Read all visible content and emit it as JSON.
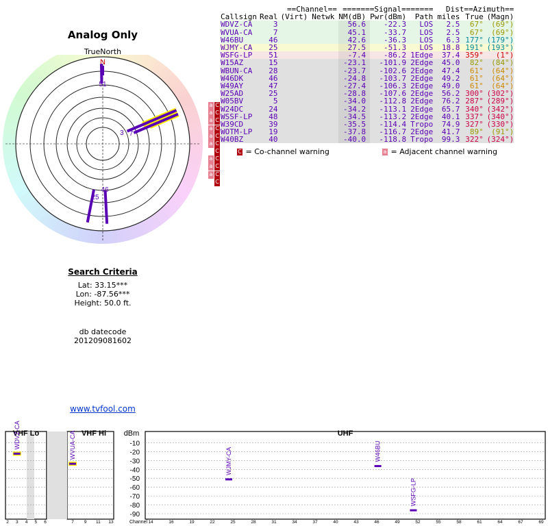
{
  "page": {
    "title": "Analog Only",
    "truenorth_label": "TrueNorth",
    "north_marker": "N",
    "link": "www.tvfool.com"
  },
  "search": {
    "heading": "Search Criteria",
    "lat": "Lat: 33.15***",
    "lon": "Lon: -87.56***",
    "height": "Height: 50.0 ft.",
    "datecode_label": "db datecode",
    "datecode": "201209081602"
  },
  "table": {
    "group_headers": {
      "channel": "==Channel==",
      "signal": "=======Signal=======",
      "dist": "Dist",
      "azimuth": "==Azimuth=="
    },
    "columns": [
      "Callsign",
      "Real",
      "(Virt)",
      "Netwk",
      "NM(dB)",
      "Pwr(dBm)",
      "Path",
      "miles",
      "True",
      "(Magn)"
    ],
    "rows": [
      {
        "callsign": "WDVZ-CA",
        "real": "3",
        "virt": "",
        "netwk": "",
        "nm": "56.6",
        "pwr": "-22.3",
        "path": "LOS",
        "dist": "2.5",
        "true": "67°",
        "magn": "(69°)",
        "bg": "#e6f6e6",
        "az_color": "#999900",
        "flag": ""
      },
      {
        "callsign": "WVUA-CA",
        "real": "7",
        "virt": "",
        "netwk": "",
        "nm": "45.1",
        "pwr": "-33.7",
        "path": "LOS",
        "dist": "2.5",
        "true": "67°",
        "magn": "(69°)",
        "bg": "#e6f6e6",
        "az_color": "#999900",
        "flag": ""
      },
      {
        "callsign": "W46BU",
        "real": "46",
        "virt": "",
        "netwk": "",
        "nm": "42.6",
        "pwr": "-36.3",
        "path": "LOS",
        "dist": "6.3",
        "true": "177°",
        "magn": "(179°)",
        "bg": "#e6f6e6",
        "az_color": "#008899",
        "flag": ""
      },
      {
        "callsign": "WJMY-CA",
        "real": "25",
        "virt": "",
        "netwk": "",
        "nm": "27.5",
        "pwr": "-51.3",
        "path": "LOS",
        "dist": "18.8",
        "true": "191°",
        "magn": "(193°)",
        "bg": "#fafad2",
        "az_color": "#008899",
        "flag": ""
      },
      {
        "callsign": "WSFG-LP",
        "real": "51",
        "virt": "",
        "netwk": "",
        "nm": "-7.4",
        "pwr": "-86.2",
        "path": "1Edge",
        "dist": "37.4",
        "true": "359°",
        "magn": "(1°)",
        "bg": "#f6e6e6",
        "az_color": "#cc0000",
        "flag": ""
      },
      {
        "callsign": "W15AZ",
        "real": "15",
        "virt": "",
        "netwk": "",
        "nm": "-23.1",
        "pwr": "-101.9",
        "path": "2Edge",
        "dist": "45.0",
        "true": "82°",
        "magn": "(84°)",
        "bg": "#e0e0e0",
        "az_color": "#999900",
        "flag": "aC"
      },
      {
        "callsign": "WBUN-CA",
        "real": "28",
        "virt": "",
        "netwk": "",
        "nm": "-23.7",
        "pwr": "-102.6",
        "path": "2Edge",
        "dist": "47.4",
        "true": "61°",
        "magn": "(64°)",
        "bg": "#e0e0e0",
        "az_color": "#cc8800",
        "flag": "aC"
      },
      {
        "callsign": "W46DK",
        "real": "46",
        "virt": "",
        "netwk": "",
        "nm": "-24.8",
        "pwr": "-103.7",
        "path": "2Edge",
        "dist": "49.2",
        "true": "61°",
        "magn": "(64°)",
        "bg": "#e0e0e0",
        "az_color": "#cc8800",
        "flag": "aC"
      },
      {
        "callsign": "W49AY",
        "real": "47",
        "virt": "",
        "netwk": "",
        "nm": "-27.4",
        "pwr": "-106.3",
        "path": "2Edge",
        "dist": "49.0",
        "true": "61°",
        "magn": "(64°)",
        "bg": "#e0e0e0",
        "az_color": "#cc8800",
        "flag": "aC"
      },
      {
        "callsign": "W25AD",
        "real": "25",
        "virt": "",
        "netwk": "",
        "nm": "-28.8",
        "pwr": "-107.6",
        "path": "2Edge",
        "dist": "56.2",
        "true": "300°",
        "magn": "(302°)",
        "bg": "#e0e0e0",
        "az_color": "#cc0044",
        "flag": "aC"
      },
      {
        "callsign": "W05BV",
        "real": "5",
        "virt": "",
        "netwk": "",
        "nm": "-34.0",
        "pwr": "-112.8",
        "path": "2Edge",
        "dist": "76.2",
        "true": "287°",
        "magn": "(289°)",
        "bg": "#e0e0e0",
        "az_color": "#cc0044",
        "flag": "aC"
      },
      {
        "callsign": "W24DC",
        "real": "24",
        "virt": "",
        "netwk": "",
        "nm": "-34.2",
        "pwr": "-113.1",
        "path": "2Edge",
        "dist": "65.7",
        "true": "340°",
        "magn": "(342°)",
        "bg": "#e0e0e0",
        "az_color": "#cc0044",
        "flag": "C"
      },
      {
        "callsign": "WSSF-LP",
        "real": "48",
        "virt": "",
        "netwk": "",
        "nm": "-34.5",
        "pwr": "-113.2",
        "path": "2Edge",
        "dist": "40.1",
        "true": "337°",
        "magn": "(340°)",
        "bg": "#e0e0e0",
        "az_color": "#cc0044",
        "flag": "aC"
      },
      {
        "callsign": "W39CD",
        "real": "39",
        "virt": "",
        "netwk": "",
        "nm": "-35.5",
        "pwr": "-114.4",
        "path": "Tropo",
        "dist": "74.9",
        "true": "327°",
        "magn": "(330°)",
        "bg": "#e0e0e0",
        "az_color": "#cc0044",
        "flag": "aC"
      },
      {
        "callsign": "WOTM-LP",
        "real": "19",
        "virt": "",
        "netwk": "",
        "nm": "-37.8",
        "pwr": "-116.7",
        "path": "2Edge",
        "dist": "41.7",
        "true": "89°",
        "magn": "(91°)",
        "bg": "#e0e0e0",
        "az_color": "#999900",
        "flag": "aC"
      },
      {
        "callsign": "W40BZ",
        "real": "40",
        "virt": "",
        "netwk": "",
        "nm": "-40.0",
        "pwr": "-118.8",
        "path": "Tropo",
        "dist": "99.3",
        "true": "322°",
        "magn": "(324°)",
        "bg": "#e0e0e0",
        "az_color": "#cc0044",
        "flag": "C"
      }
    ]
  },
  "legend": {
    "cochannel_icon": "C",
    "cochannel": "= Co-channel warning",
    "adjacent_icon": "a",
    "adjacent": "= Adjacent channel warning"
  },
  "polar": {
    "stations": [
      {
        "label": "3",
        "az": 67,
        "color": "#5a00b4",
        "outline": "#ffee00",
        "len": 0.93
      },
      {
        "label": "7",
        "az": 67,
        "color": "#5a00b4",
        "outline": "#ffee00",
        "len": 0.93
      },
      {
        "label": "46",
        "az": 177,
        "color": "#5a00b4",
        "outline": "",
        "len": 0.92
      },
      {
        "label": "25",
        "az": 191,
        "color": "#5a00b4",
        "outline": "",
        "len": 0.92
      },
      {
        "label": "51",
        "az": 359,
        "color": "#5a00b4",
        "outline": "",
        "len": 0.92
      }
    ]
  },
  "spectrum": {
    "sections": {
      "vhf_lo": "VHF Lo",
      "vhf_hi": "VHF Hi",
      "uhf": "UHF",
      "dbm": "dBm",
      "channel": "Channel"
    },
    "y_ticks": [
      "-10",
      "-20",
      "-30",
      "-40",
      "-50",
      "-60",
      "-70",
      "-80",
      "-90"
    ],
    "vhf_lo_ticks": [
      "2",
      "3",
      "4",
      "5",
      "6"
    ],
    "vhf_hi_ticks": [
      "7",
      "9",
      "11",
      "13"
    ],
    "uhf_ticks": [
      "14",
      "16",
      "19",
      "22",
      "25",
      "28",
      "31",
      "34",
      "37",
      "40",
      "43",
      "46",
      "49",
      "52",
      "55",
      "58",
      "61",
      "64",
      "67",
      "69"
    ],
    "bars": [
      {
        "callsign": "WDVZ-CA",
        "channel": 3,
        "pwr": -22.3,
        "outline": "#ffee00"
      },
      {
        "callsign": "WVUA-CA",
        "channel": 7,
        "pwr": -33.7,
        "outline": "#ffee00"
      },
      {
        "callsign": "WJMY-CA",
        "channel": 25,
        "pwr": -51.3,
        "outline": ""
      },
      {
        "callsign": "W46BU",
        "channel": 46,
        "pwr": -36.3,
        "outline": ""
      },
      {
        "callsign": "WSFG-LP",
        "channel": 51,
        "pwr": -86.2,
        "outline": ""
      }
    ]
  }
}
